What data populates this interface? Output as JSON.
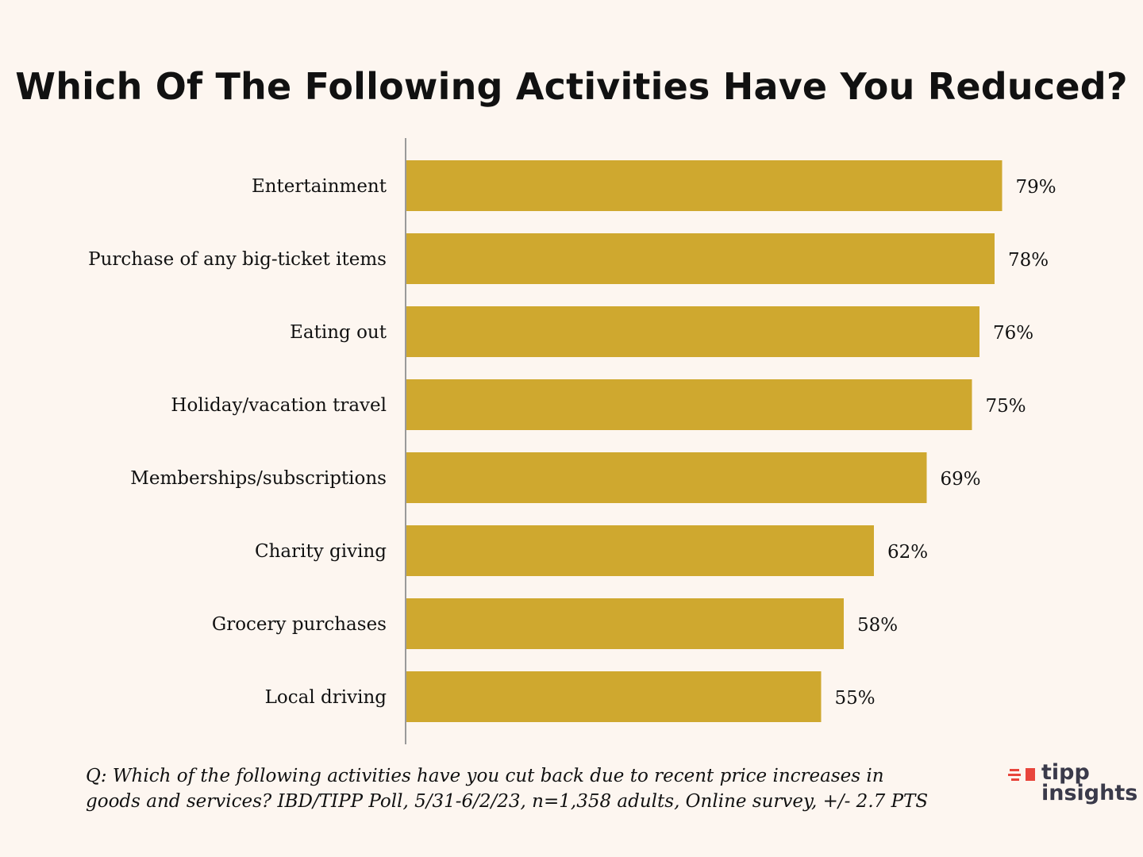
{
  "title": "Which Of The Following Activities Have You Reduced?",
  "chart_data": {
    "type": "bar",
    "orientation": "horizontal",
    "categories": [
      "Entertainment",
      "Purchase of any big-ticket items",
      "Eating out",
      "Holiday/vacation travel",
      "Memberships/subscriptions",
      "Charity giving",
      "Grocery purchases",
      "Local driving"
    ],
    "values": [
      79,
      78,
      76,
      75,
      69,
      62,
      58,
      55
    ],
    "value_labels": [
      "79%",
      "78%",
      "76%",
      "75%",
      "69%",
      "62%",
      "58%",
      "55%"
    ],
    "xlim": [
      0,
      100
    ],
    "grid": false,
    "bar_color": "#cfa82f",
    "axis_color": "#9a9a9a"
  },
  "footnote": {
    "line1": "Q:  Which of the following activities have you cut back due to recent price increases in",
    "line2": "goods and services? IBD/TIPP Poll, 5/31-6/2/23, n=1,358 adults, Online survey, +/- 2.7 PTS"
  },
  "logo": {
    "word1": "tipp",
    "word2": "insights",
    "icon": "tipp-insights-logo-icon",
    "accent_color": "#e8453c"
  }
}
